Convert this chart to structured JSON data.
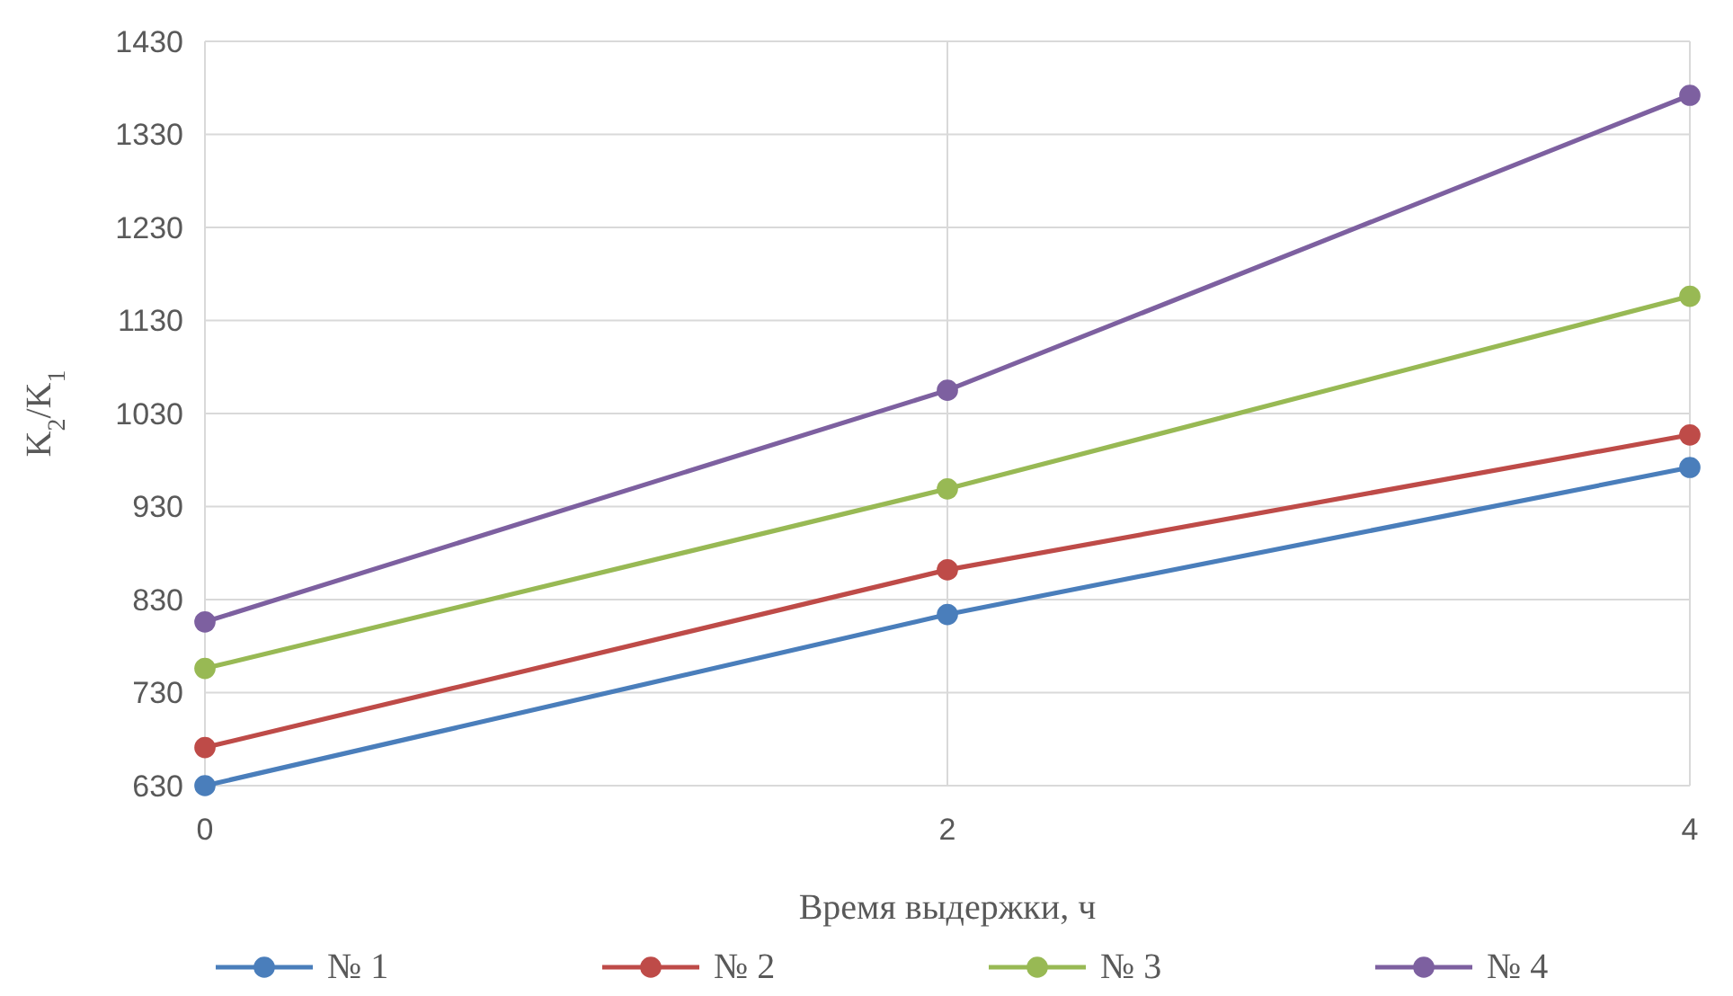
{
  "chart_data": {
    "type": "line",
    "xlabel": "Время выдержки, ч",
    "ylabel": "K$_{2}$/K$_{1}$",
    "x": [
      0,
      2,
      4
    ],
    "series": [
      {
        "name": "№ 1",
        "color": "#4a7ebb",
        "values": [
          630,
          814,
          972
        ]
      },
      {
        "name": "№ 2",
        "color": "#be4b48",
        "values": [
          671,
          862,
          1007
        ]
      },
      {
        "name": "№ 3",
        "color": "#98b954",
        "values": [
          756,
          949,
          1156
        ]
      },
      {
        "name": "№ 4",
        "color": "#7d60a0",
        "values": [
          806,
          1055,
          1372
        ]
      }
    ],
    "xlim": [
      0,
      4
    ],
    "xticks": [
      0,
      2,
      4
    ],
    "ylim": [
      630,
      1430
    ],
    "yticks": [
      630,
      730,
      830,
      930,
      1030,
      1130,
      1230,
      1330,
      1430
    ],
    "grid": true,
    "legend": "bottom",
    "marker": "circle",
    "line_style": "solid"
  }
}
